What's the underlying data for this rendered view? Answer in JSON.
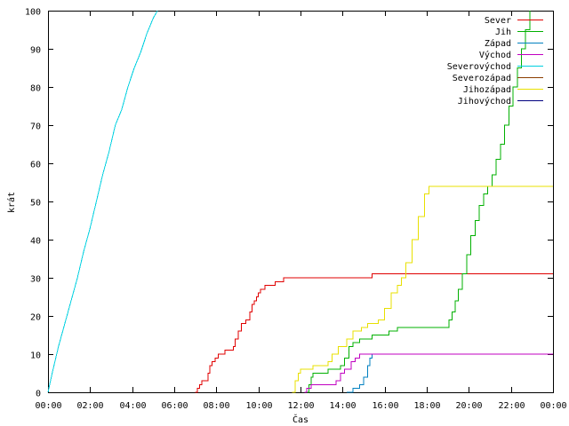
{
  "chart_data": {
    "type": "line",
    "title": "",
    "xlabel": "Čas",
    "ylabel": "krát",
    "xlim": [
      0,
      24
    ],
    "ylim": [
      0,
      100
    ],
    "grid": false,
    "legend": "top-right",
    "x_ticks": [
      {
        "value": 0,
        "label": "00:00"
      },
      {
        "value": 2,
        "label": "02:00"
      },
      {
        "value": 4,
        "label": "04:00"
      },
      {
        "value": 6,
        "label": "06:00"
      },
      {
        "value": 8,
        "label": "08:00"
      },
      {
        "value": 10,
        "label": "10:00"
      },
      {
        "value": 12,
        "label": "12:00"
      },
      {
        "value": 14,
        "label": "14:00"
      },
      {
        "value": 16,
        "label": "16:00"
      },
      {
        "value": 18,
        "label": "18:00"
      },
      {
        "value": 20,
        "label": "20:00"
      },
      {
        "value": 22,
        "label": "22:00"
      },
      {
        "value": 24,
        "label": "00:00"
      }
    ],
    "y_ticks": [
      0,
      10,
      20,
      30,
      40,
      50,
      60,
      70,
      80,
      90,
      100
    ],
    "series": [
      {
        "name": "Sever",
        "color": "#e00000",
        "step": true,
        "points": [
          [
            7.0,
            0
          ],
          [
            7.1,
            1
          ],
          [
            7.2,
            2
          ],
          [
            7.3,
            3
          ],
          [
            7.6,
            5
          ],
          [
            7.7,
            7
          ],
          [
            7.8,
            8
          ],
          [
            7.95,
            9
          ],
          [
            8.1,
            10
          ],
          [
            8.4,
            11
          ],
          [
            8.8,
            12
          ],
          [
            8.9,
            14
          ],
          [
            9.05,
            16
          ],
          [
            9.2,
            18
          ],
          [
            9.4,
            19
          ],
          [
            9.6,
            21
          ],
          [
            9.7,
            23
          ],
          [
            9.8,
            24
          ],
          [
            9.9,
            25
          ],
          [
            10.0,
            26
          ],
          [
            10.1,
            27
          ],
          [
            10.3,
            28
          ],
          [
            10.8,
            29
          ],
          [
            11.2,
            30
          ],
          [
            15.4,
            31
          ],
          [
            24.0,
            31
          ]
        ]
      },
      {
        "name": "Jih",
        "color": "#00b000",
        "step": true,
        "points": [
          [
            12.3,
            0
          ],
          [
            12.4,
            2
          ],
          [
            12.5,
            4
          ],
          [
            12.6,
            5
          ],
          [
            13.3,
            6
          ],
          [
            13.9,
            7
          ],
          [
            14.1,
            9
          ],
          [
            14.3,
            12
          ],
          [
            14.5,
            13
          ],
          [
            14.8,
            14
          ],
          [
            15.4,
            15
          ],
          [
            16.2,
            16
          ],
          [
            16.6,
            17
          ],
          [
            18.9,
            17
          ],
          [
            19.05,
            19
          ],
          [
            19.2,
            21
          ],
          [
            19.35,
            24
          ],
          [
            19.5,
            27
          ],
          [
            19.7,
            31
          ],
          [
            19.9,
            36
          ],
          [
            20.1,
            41
          ],
          [
            20.3,
            45
          ],
          [
            20.5,
            49
          ],
          [
            20.7,
            52
          ],
          [
            20.9,
            54
          ],
          [
            21.1,
            57
          ],
          [
            21.3,
            61
          ],
          [
            21.5,
            65
          ],
          [
            21.7,
            70
          ],
          [
            21.9,
            75
          ],
          [
            22.1,
            80
          ],
          [
            22.3,
            85
          ],
          [
            22.5,
            90
          ],
          [
            22.7,
            95
          ],
          [
            22.9,
            100
          ]
        ]
      },
      {
        "name": "Západ",
        "color": "#0080c0",
        "step": true,
        "points": [
          [
            14.2,
            0
          ],
          [
            14.5,
            1
          ],
          [
            14.8,
            2
          ],
          [
            15.0,
            4
          ],
          [
            15.2,
            7
          ],
          [
            15.3,
            9
          ],
          [
            15.4,
            10
          ],
          [
            24.0,
            10
          ]
        ]
      },
      {
        "name": "Východ",
        "color": "#c000c0",
        "step": true,
        "points": [
          [
            12.2,
            0
          ],
          [
            12.3,
            1
          ],
          [
            12.5,
            2
          ],
          [
            13.7,
            3
          ],
          [
            13.9,
            5
          ],
          [
            14.1,
            6
          ],
          [
            14.4,
            8
          ],
          [
            14.6,
            9
          ],
          [
            14.8,
            10
          ],
          [
            24.0,
            10
          ]
        ]
      },
      {
        "name": "Severovýchod",
        "color": "#00d0e0",
        "step": false,
        "points": [
          [
            0.0,
            0
          ],
          [
            0.2,
            5
          ],
          [
            0.5,
            12
          ],
          [
            0.8,
            18
          ],
          [
            1.1,
            24
          ],
          [
            1.4,
            30
          ],
          [
            1.7,
            37
          ],
          [
            2.0,
            43
          ],
          [
            2.3,
            50
          ],
          [
            2.6,
            57
          ],
          [
            2.9,
            63
          ],
          [
            3.2,
            70
          ],
          [
            3.5,
            74
          ],
          [
            3.8,
            80
          ],
          [
            4.1,
            85
          ],
          [
            4.4,
            89
          ],
          [
            4.7,
            94
          ],
          [
            5.0,
            98
          ],
          [
            5.2,
            100
          ]
        ]
      },
      {
        "name": "Severozápad",
        "color": "#8b3d00",
        "step": true,
        "points": []
      },
      {
        "name": "Jihozápad",
        "color": "#e8e000",
        "step": true,
        "points": [
          [
            11.6,
            0
          ],
          [
            11.75,
            3
          ],
          [
            11.9,
            5
          ],
          [
            12.0,
            6
          ],
          [
            12.6,
            7
          ],
          [
            13.3,
            8
          ],
          [
            13.5,
            10
          ],
          [
            13.8,
            12
          ],
          [
            14.2,
            14
          ],
          [
            14.5,
            16
          ],
          [
            14.9,
            17
          ],
          [
            15.2,
            18
          ],
          [
            15.7,
            19
          ],
          [
            16.0,
            22
          ],
          [
            16.3,
            26
          ],
          [
            16.6,
            28
          ],
          [
            16.8,
            30
          ],
          [
            17.0,
            34
          ],
          [
            17.3,
            40
          ],
          [
            17.6,
            46
          ],
          [
            17.9,
            52
          ],
          [
            18.1,
            54
          ],
          [
            24.0,
            54
          ]
        ]
      },
      {
        "name": "Jihovýchod",
        "color": "#000080",
        "step": true,
        "points": []
      }
    ]
  }
}
